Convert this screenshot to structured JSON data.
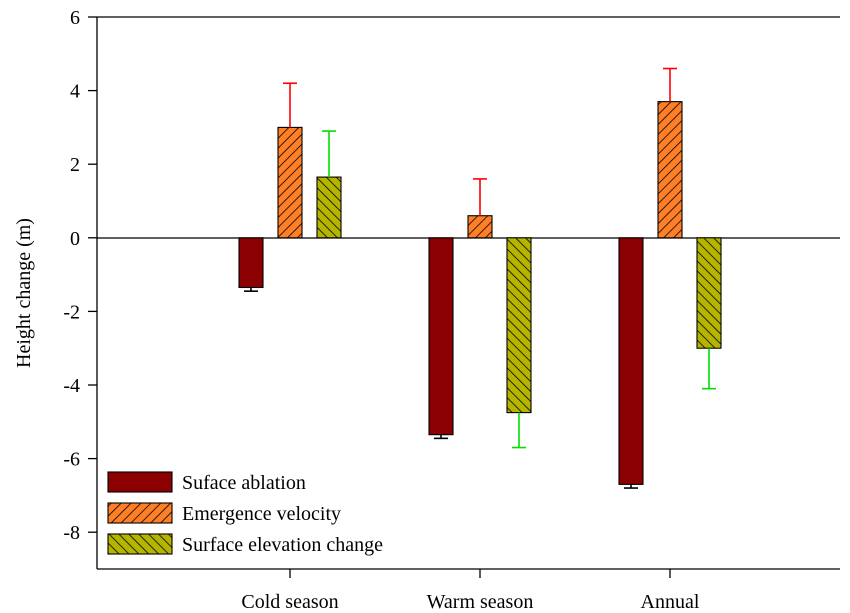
{
  "chart_data": {
    "type": "bar",
    "ylabel": "Height change (m)",
    "xlabel": "",
    "ylim": [
      -9,
      6
    ],
    "y_ticks": [
      6,
      4,
      2,
      0,
      -2,
      -4,
      -6,
      -8
    ],
    "categories": [
      "Cold season",
      "Warm season",
      "Annual"
    ],
    "series": [
      {
        "name": "Suface ablation",
        "color": "#8b0000",
        "pattern": "solid",
        "values": [
          -1.35,
          -5.35,
          -6.7
        ],
        "errors": [
          0.1,
          0.1,
          0.1
        ],
        "error_color": "#000000"
      },
      {
        "name": "Emergence velocity",
        "color": "#ff7f27",
        "pattern": "hatch",
        "values": [
          3.0,
          0.6,
          3.7
        ],
        "errors": [
          1.2,
          1.0,
          0.9
        ],
        "error_color": "#ff0000"
      },
      {
        "name": "Surface elevation change",
        "color": "#b5b500",
        "pattern": "hatch-reverse",
        "values": [
          1.65,
          -4.75,
          -3.0
        ],
        "errors": [
          1.25,
          0.95,
          1.1
        ],
        "error_color": "#00e000"
      }
    ],
    "legend_position": "bottom-left",
    "grid": false
  }
}
